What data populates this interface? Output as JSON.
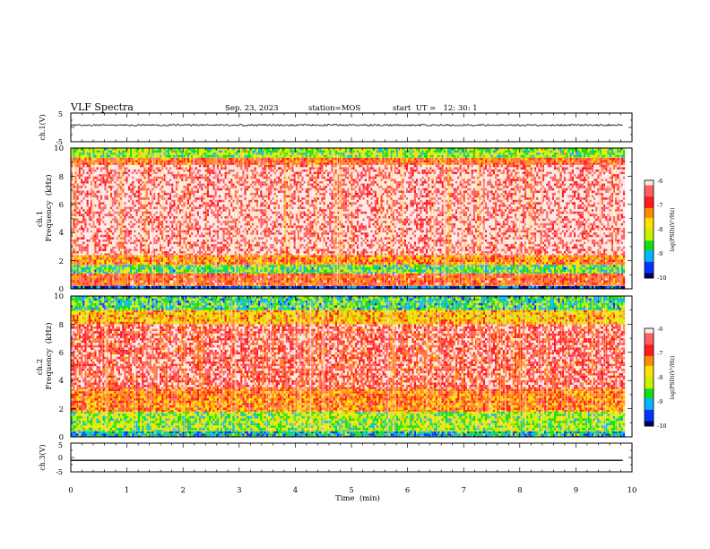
{
  "header": {
    "title": "VLF Spectra",
    "date": "Sep. 23, 2023",
    "station": "station=MOS",
    "start": "start  UT =   12: 30: 1"
  },
  "chart_data": [
    {
      "type": "line",
      "panel": "ch1-waveform",
      "ylabel": "ch.1(V)",
      "ylim": [
        -5,
        5
      ],
      "y_ticklabels": [
        "5",
        "-5"
      ],
      "baseline": 0.8,
      "noise_amplitude": 0.3
    },
    {
      "type": "heatmap",
      "panel": "ch1-spectrogram",
      "ylabel_top": "ch.1",
      "ylabel": "Frequency  (kHz)",
      "ylim": [
        0,
        10
      ],
      "y_ticklabels": [
        "0",
        "2",
        "4",
        "6",
        "8",
        "10"
      ],
      "colorbar": {
        "label": "log(PSD)(V²/Hz)",
        "range": [
          -10,
          -6
        ],
        "ticks": [
          "-6",
          "-7",
          "-8",
          "-9",
          "-10"
        ]
      },
      "bands": [
        {
          "from_khz": 0.0,
          "to_khz": 0.2,
          "level": -9.6
        },
        {
          "from_khz": 0.2,
          "to_khz": 1.1,
          "level": -6.9
        },
        {
          "from_khz": 1.1,
          "to_khz": 1.7,
          "level": -8.6
        },
        {
          "from_khz": 1.7,
          "to_khz": 2.4,
          "level": -7.3
        },
        {
          "from_khz": 2.4,
          "to_khz": 8.8,
          "level": -6.15
        },
        {
          "from_khz": 8.8,
          "to_khz": 9.3,
          "level": -7.0
        },
        {
          "from_khz": 9.3,
          "to_khz": 10.0,
          "level": -8.3
        }
      ]
    },
    {
      "type": "heatmap",
      "panel": "ch2-spectrogram",
      "ylabel_top": "ch.2",
      "ylabel": "Frequency  (kHz)",
      "ylim": [
        0,
        10
      ],
      "y_ticklabels": [
        "0",
        "2",
        "4",
        "6",
        "8",
        "10"
      ],
      "colorbar": {
        "label": "log(PSD)(V²/Hz)",
        "range": [
          -10,
          -6
        ],
        "ticks": [
          "-6",
          "-7",
          "-8",
          "-9",
          "-10"
        ]
      },
      "bands": [
        {
          "from_khz": 0.0,
          "to_khz": 0.4,
          "level": -9.0
        },
        {
          "from_khz": 0.4,
          "to_khz": 1.8,
          "level": -8.3
        },
        {
          "from_khz": 1.8,
          "to_khz": 3.4,
          "level": -7.2
        },
        {
          "from_khz": 3.4,
          "to_khz": 8.0,
          "level": -6.5
        },
        {
          "from_khz": 8.0,
          "to_khz": 9.0,
          "level": -7.6
        },
        {
          "from_khz": 9.0,
          "to_khz": 10.0,
          "level": -8.7
        }
      ]
    },
    {
      "type": "line",
      "panel": "ch3-waveform",
      "ylabel": "ch.3(V)",
      "ylim": [
        -5,
        5
      ],
      "y_ticklabels": [
        "5",
        "0",
        "-5"
      ],
      "baseline": -1.0,
      "noise_amplitude": 0.0
    }
  ],
  "xaxis": {
    "label": "Time  (min)",
    "xlim": [
      0,
      10
    ],
    "data_end": 9.85,
    "ticklabels": [
      "0",
      "1",
      "2",
      "3",
      "4",
      "5",
      "6",
      "7",
      "8",
      "9",
      "10"
    ]
  },
  "colors": {
    "scale": [
      "#00005a",
      "#0033ff",
      "#00b4ff",
      "#10e010",
      "#c8f000",
      "#ffe000",
      "#ff8c00",
      "#ff1a1a",
      "#ff6060",
      "#ffe8e8"
    ]
  }
}
